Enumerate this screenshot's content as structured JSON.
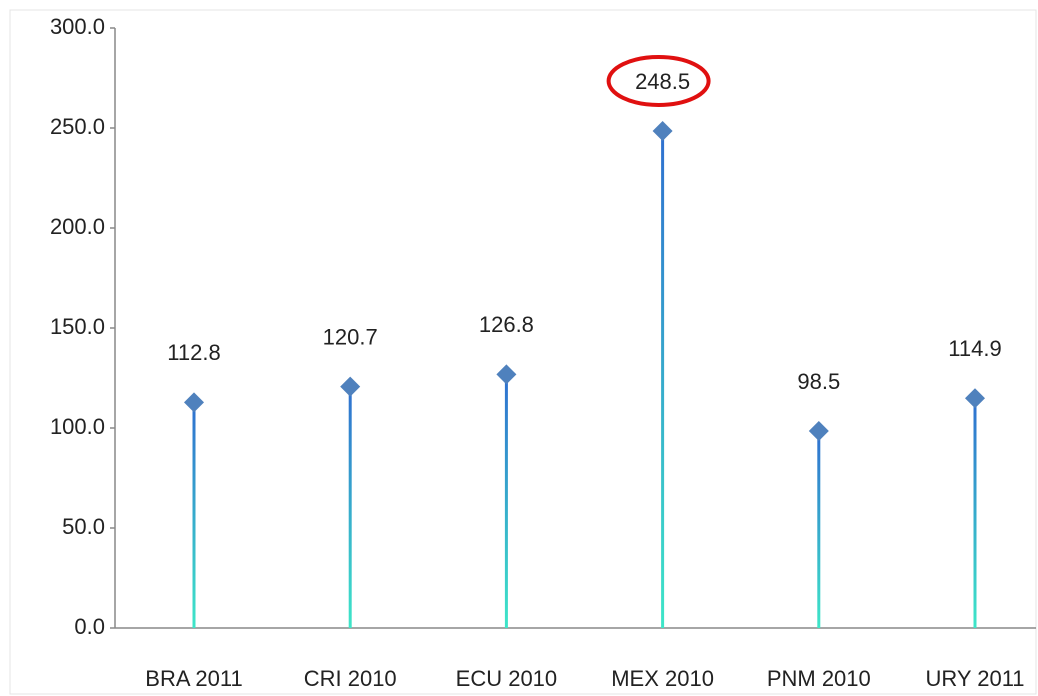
{
  "chart_data": {
    "type": "lollipop",
    "categories": [
      "BRA 2011",
      "CRI 2010",
      "ECU 2010",
      "MEX 2010",
      "PNM 2010",
      "URY 2011"
    ],
    "values": [
      112.8,
      120.7,
      126.8,
      248.5,
      98.5,
      114.9
    ],
    "color": "#4f81bd",
    "ylim": [
      0,
      300
    ],
    "yticks": [
      {
        "value": 0,
        "label": "0.0"
      },
      {
        "value": 50,
        "label": "50.0"
      },
      {
        "value": 100,
        "label": "100.0"
      },
      {
        "value": 150,
        "label": "150.0"
      },
      {
        "value": 200,
        "label": "200.0"
      },
      {
        "value": 250,
        "label": "250.0"
      },
      {
        "value": 300,
        "label": "300.0"
      }
    ],
    "grid": false
  }
}
